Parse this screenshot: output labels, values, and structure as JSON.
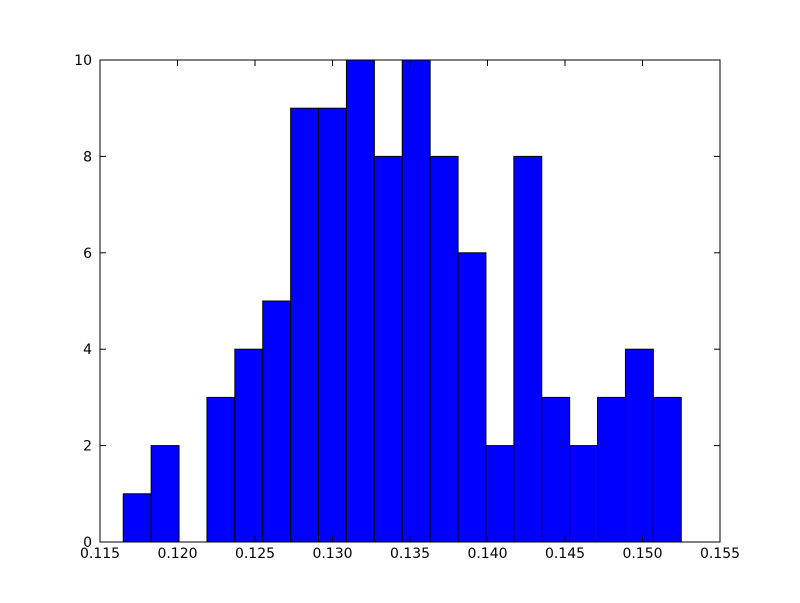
{
  "chart_data": {
    "type": "histogram",
    "bins": [
      0.1165,
      0.1183,
      0.1201,
      0.1219,
      0.1237,
      0.1255,
      0.1273,
      0.1291,
      0.1309,
      0.1327,
      0.1345,
      0.1363,
      0.1381,
      0.1399,
      0.1417,
      0.1435,
      0.1453,
      0.1471,
      0.1489,
      0.1507,
      0.1525
    ],
    "values": [
      1,
      2,
      0,
      3,
      4,
      5,
      9,
      9,
      10,
      8,
      10,
      8,
      6,
      2,
      8,
      3,
      2,
      3,
      4,
      3
    ],
    "color": "#0000ff",
    "xlim": [
      0.115,
      0.155
    ],
    "xticks": [
      0.115,
      {
        "value": 0.12,
        "label": "0.120"
      },
      0.125,
      {
        "value": 0.13,
        "label": "0.130"
      },
      0.135,
      {
        "value": 0.14,
        "label": "0.140"
      },
      0.145,
      {
        "value": 0.15,
        "label": "0.150"
      },
      0.155
    ],
    "ylim": [
      0,
      10
    ],
    "yticks": [
      0,
      2,
      4,
      6,
      8,
      10
    ]
  }
}
